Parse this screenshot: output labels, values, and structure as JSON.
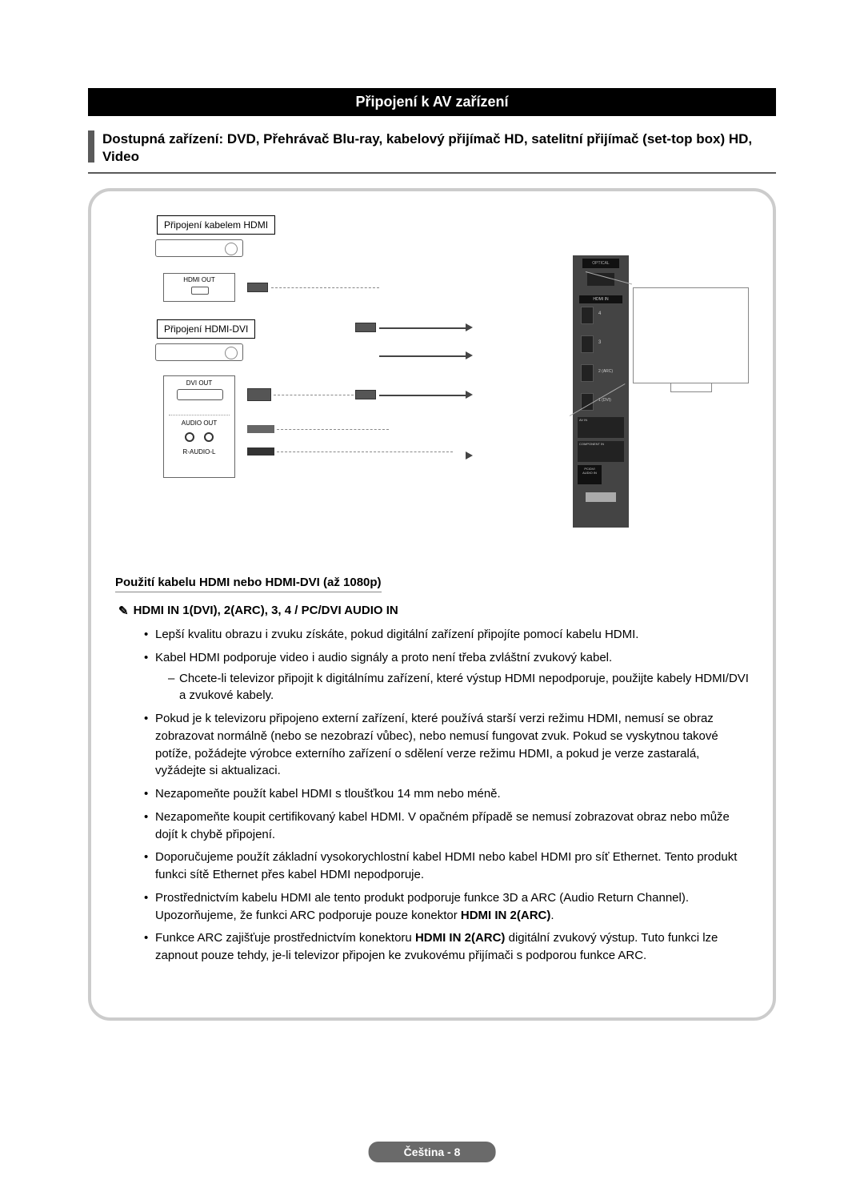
{
  "header": {
    "title": "Připojení k AV zařízení"
  },
  "subtitle": "Dostupná zařízení: DVD, Přehrávač Blu-ray, kabelový přijímač HD, satelitní přijímač (set-top box) HD, Video",
  "diagram": {
    "label_hdmi_cable": "Připojení kabelem HDMI",
    "label_hdmi_dvi": "Připojení HDMI-DVI",
    "port_hdmi_out": "HDMI OUT",
    "port_dvi_out": "DVI OUT",
    "port_audio_out": "AUDIO OUT",
    "port_audio_lr": "R-AUDIO-L",
    "tv_optical": "OPTICAL",
    "tv_hdmi_in": "HDMI IN",
    "tv_port1": "4",
    "tv_port2": "3",
    "tv_port3": "2 (ARC)",
    "tv_port4": "1 (DVI)",
    "tv_avin": "AV IN",
    "tv_component": "COMPONENT IN",
    "tv_pcdvi": "PC/DVI\nAUDIO IN"
  },
  "usage": {
    "heading": "Použití kabelu HDMI nebo HDMI-DVI (až 1080p)",
    "note_icon": "✎",
    "note_text": "HDMI IN 1(DVI), 2(ARC), 3, 4 / PC/DVI AUDIO IN",
    "bullets": [
      {
        "text": "Lepší kvalitu obrazu i zvuku získáte, pokud digitální zařízení připojíte pomocí kabelu HDMI."
      },
      {
        "text": "Kabel HDMI podporuje video i audio signály a proto není třeba zvláštní zvukový kabel.",
        "sub": [
          "Chcete-li televizor připojit k digitálnímu zařízení, které výstup HDMI nepodporuje, použijte kabely HDMI/DVI a zvukové kabely."
        ]
      },
      {
        "text": "Pokud je k televizoru připojeno externí zařízení, které používá starší verzi režimu HDMI, nemusí se obraz zobrazovat normálně (nebo se nezobrazí vůbec), nebo nemusí fungovat zvuk. Pokud se vyskytnou takové potíže, požádejte výrobce externího zařízení o sdělení verze režimu HDMI, a pokud je verze zastaralá, vyžádejte si aktualizaci."
      },
      {
        "text": "Nezapomeňte použít kabel HDMI s tloušťkou 14 mm nebo méně."
      },
      {
        "text": "Nezapomeňte koupit certifikovaný kabel HDMI. V opačném případě se nemusí zobrazovat obraz nebo může dojít k chybě připojení."
      },
      {
        "text": "Doporučujeme použít základní vysokorychlostní kabel HDMI nebo kabel HDMI pro síť Ethernet. Tento produkt funkci sítě Ethernet přes kabel HDMI nepodporuje."
      },
      {
        "html": "Prostřednictvím kabelu HDMI ale tento produkt podporuje funkce 3D a ARC (Audio Return Channel). Upozorňujeme, že funkci ARC podporuje pouze konektor <b>HDMI IN 2(ARC)</b>."
      },
      {
        "html": "Funkce ARC zajišťuje prostřednictvím konektoru <b>HDMI IN 2(ARC)</b> digitální zvukový výstup. Tuto funkci lze zapnout pouze tehdy, je-li televizor připojen ke zvukovému přijímači s podporou funkce ARC."
      }
    ]
  },
  "footer": {
    "lang": "Čeština",
    "page": "8"
  },
  "colors": {
    "header_bg": "#000000",
    "header_fg": "#ffffff",
    "accent": "#5a5a5a",
    "box_border": "#cccccc",
    "footer_bg": "#6a6a6a"
  }
}
